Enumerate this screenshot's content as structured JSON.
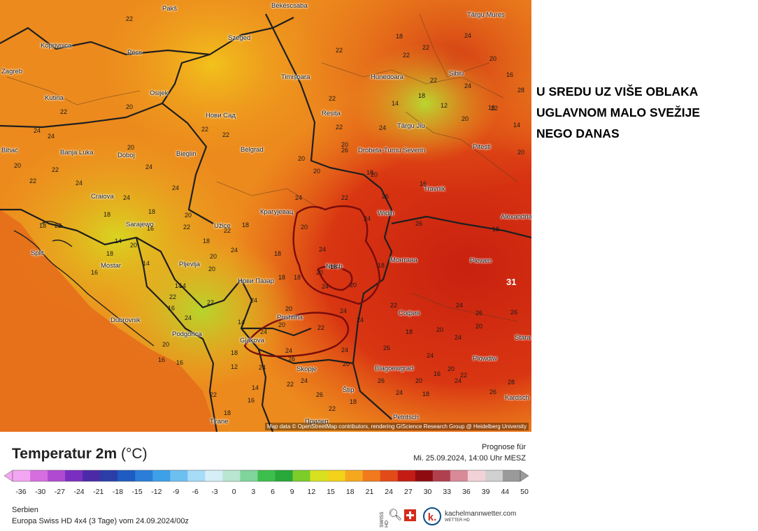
{
  "note": {
    "lines": [
      "U SREDU UZ VIŠE OBLAKA",
      "UGLAVNOM MALO SVEŽIJE",
      "NEGO DANAS"
    ]
  },
  "map": {
    "attribution": "Map data © OpenStreetMap contributors, rendering GIScience Research Group @ Heidelberg University",
    "max_value": "31",
    "cities": [
      "Pakš",
      "Békéscsaba",
      "Târgu Mureș",
      "Koprivnica",
      "Pécs",
      "Szeged",
      "Zagreb",
      "Osijek",
      "Timișoara",
      "Hunedoara",
      "Sibiu",
      "Kutina",
      "Нови Сад",
      "Reșița",
      "Târgu Jiu",
      "Bihać",
      "Banja Luka",
      "Doboj",
      "Bieglin",
      "Belgrad",
      "Drobeta-Turnu Severin",
      "Pitești",
      "Travnik",
      "Craiova",
      "Sarajewo",
      "Užice",
      "Крагујевац",
      "Widin",
      "Alexandria",
      "Split",
      "Mostar",
      "Pljevlja",
      "Nisch",
      "Монтана",
      "Plewen",
      "Нови Пазар",
      "Dubrovnik",
      "Prishtina",
      "София",
      "Podgorica",
      "Gjakova",
      "Stara",
      "Skopje",
      "Blagoewgrad",
      "Plowdiw",
      "Tirane",
      "Štip",
      "Прилеп",
      "Petritsch",
      "Kardsch"
    ],
    "temperatures": [
      "22",
      "22",
      "22",
      "22",
      "22",
      "20",
      "22",
      "22",
      "24",
      "24",
      "20",
      "20",
      "22",
      "24",
      "24",
      "24",
      "22",
      "24",
      "18",
      "22",
      "18",
      "18",
      "20",
      "22",
      "24",
      "20",
      "18",
      "20",
      "24",
      "18",
      "14",
      "24",
      "20",
      "18",
      "16",
      "18",
      "24",
      "20",
      "16",
      "14",
      "22",
      "22",
      "18",
      "24",
      "24",
      "26",
      "20",
      "24",
      "16",
      "20",
      "22",
      "28",
      "26",
      "18",
      "20",
      "26",
      "26",
      "20",
      "24",
      "14",
      "18",
      "12",
      "14",
      "16",
      "22",
      "18",
      "16",
      "16",
      "20",
      "24",
      "22",
      "24",
      "24",
      "20",
      "26",
      "24",
      "18",
      "20",
      "22",
      "26",
      "28",
      "24",
      "18",
      "20",
      "24",
      "16",
      "20",
      "18",
      "22",
      "24",
      "20",
      "22",
      "14",
      "12",
      "16",
      "14",
      "20",
      "18",
      "24",
      "22",
      "18",
      "20",
      "16",
      "24",
      "22",
      "26",
      "24",
      "18",
      "22",
      "20",
      "24",
      "18",
      "22",
      "20",
      "26",
      "24",
      "22",
      "14",
      "20",
      "16",
      "14",
      "18",
      "20",
      "24",
      "26",
      "22",
      "18",
      "26",
      "20",
      "24"
    ]
  },
  "legend": {
    "title": "Temperatur 2m",
    "unit": "(°C)",
    "forecast_label": "Prognose für",
    "forecast_date": "Mi. 25.09.2024, 14:00 Uhr MESZ",
    "scale_ticks": [
      "-36",
      "-30",
      "-27",
      "-24",
      "-21",
      "-18",
      "-15",
      "-12",
      "-9",
      "-6",
      "-3",
      "0",
      "3",
      "6",
      "9",
      "12",
      "15",
      "18",
      "21",
      "24",
      "27",
      "30",
      "33",
      "36",
      "39",
      "44",
      "50"
    ],
    "scale_colors": [
      "#f3a6f2",
      "#d66ee0",
      "#b04ad0",
      "#7b2fc0",
      "#4b2aa8",
      "#2b3ea8",
      "#1f5cc2",
      "#2a7ed8",
      "#3da0e8",
      "#6cc0f0",
      "#a6dcf6",
      "#d6eef8",
      "#b8e6d0",
      "#7fd49c",
      "#3cbf4c",
      "#28a838",
      "#7ccc2a",
      "#d8e020",
      "#f2d21a",
      "#f5a81e",
      "#f07a1c",
      "#e24a18",
      "#c41c14",
      "#8e0c10",
      "#b0404e",
      "#d88a98",
      "#f2d2d8",
      "#d0d0d0",
      "#9a9a9a"
    ],
    "region": "Serbien",
    "model": "Europa Swiss HD 4x4 (3 Tage) vom 24.09.2024/00z",
    "logo_swiss": "SWISS HD",
    "logo_k": "k.",
    "logo_name": "kachelmannwetter.com",
    "logo_sub": "WETTER HD"
  }
}
